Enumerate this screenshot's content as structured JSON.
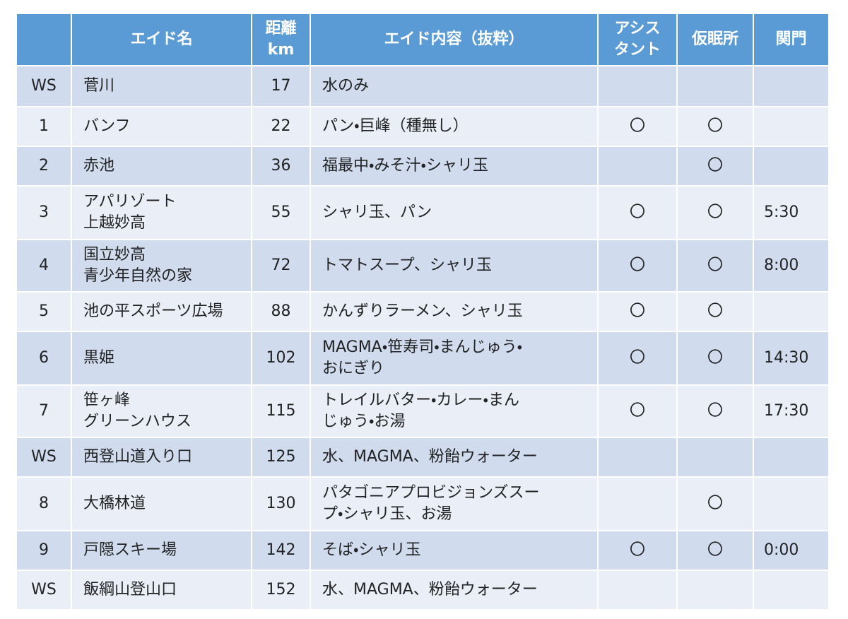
{
  "table": {
    "header": {
      "name": [
        "エイド名"
      ],
      "km": [
        "距離",
        "km"
      ],
      "content": [
        "エイド内容（抜粋）"
      ],
      "assistant": [
        "アシス",
        "タント"
      ],
      "sleep": [
        "仮眠所"
      ],
      "gate": [
        "関門"
      ]
    },
    "rows": [
      {
        "no": "WS",
        "name": [
          "菅川"
        ],
        "km": 17,
        "content": [
          "水のみ"
        ]
      },
      {
        "no": "1",
        "name": [
          "バンフ"
        ],
        "km": 22,
        "content": [
          "パン・巨峰（種無し）"
        ],
        "assistant": "〇",
        "sleep": "〇"
      },
      {
        "no": "2",
        "name": [
          "赤池"
        ],
        "km": 36,
        "content": [
          "福最中・みそ汁・シャリ玉"
        ],
        "sleep": "〇"
      },
      {
        "no": "3",
        "name": [
          "アパリゾート",
          "上越妙高"
        ],
        "km": 55,
        "content": [
          "シャリ玉、パン"
        ],
        "assistant": "〇",
        "sleep": "〇",
        "gate": "5:30"
      },
      {
        "no": "4",
        "name": [
          "国立妙高",
          "青少年自然の家"
        ],
        "km": 72,
        "content": [
          "トマトスープ、シャリ玉"
        ],
        "assistant": "〇",
        "sleep": "〇",
        "gate": "8:00"
      },
      {
        "no": "5",
        "name": [
          "池の平スポーツ広場"
        ],
        "km": 88,
        "content": [
          "かんずりラーメン、シャリ玉"
        ],
        "assistant": "〇",
        "sleep": "〇"
      },
      {
        "no": "6",
        "name": [
          "黒姫"
        ],
        "km": 102,
        "content": [
          "MAGMA・笹寿司・まんじゅう・",
          "おにぎり"
        ],
        "assistant": "〇",
        "sleep": "〇",
        "gate": "14:30"
      },
      {
        "no": "7",
        "name": [
          "笹ヶ峰",
          "グリーンハウス"
        ],
        "km": 115,
        "content": [
          "トレイルバター・カレー・まん",
          "じゅう・お湯"
        ],
        "assistant": "〇",
        "sleep": "〇",
        "gate": "17:30"
      },
      {
        "no": "WS",
        "name": [
          "西登山道入り口"
        ],
        "km": 125,
        "content": [
          "水、MAGMA、粉飴ウォーター"
        ]
      },
      {
        "no": "8",
        "name": [
          "大橋林道"
        ],
        "km": 130,
        "content": [
          "パタゴニアプロビジョンズスー",
          "プ・シャリ玉、お湯"
        ],
        "sleep": "〇"
      },
      {
        "no": "9",
        "name": [
          "戸隠スキー場"
        ],
        "km": 142,
        "content": [
          "そば・シャリ玉"
        ],
        "assistant": "〇",
        "sleep": "〇",
        "gate": "0:00"
      },
      {
        "no": "WS",
        "name": [
          "飯綱山登山口"
        ],
        "km": 152,
        "content": [
          "水、MAGMA、粉飴ウォーター"
        ]
      }
    ]
  }
}
